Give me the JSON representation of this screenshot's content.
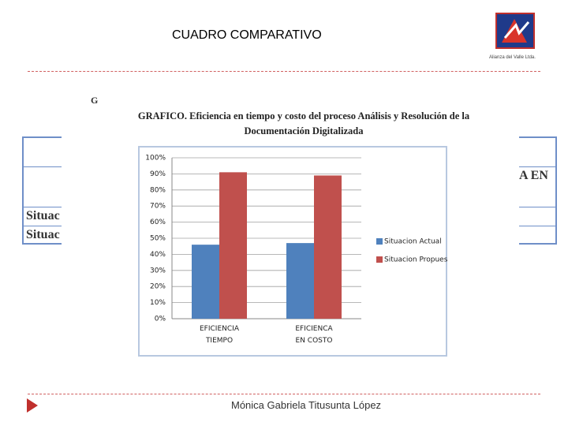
{
  "slide": {
    "heading": "CUADRO COMPARATIVO",
    "footer": "Mónica Gabriela Titusunta López",
    "logo_text": "Alianza del Valle Ltda.",
    "table_fragments": [
      "G",
      "A EN",
      "Situac",
      "Situac"
    ]
  },
  "chart_data": {
    "type": "bar",
    "title": "GRAFICO. Eficiencia en tiempo y costo del proceso Análisis y Resolución de la Documentación Digitalizada",
    "categories": [
      "EFICIENCIA TIEMPO",
      "EFICIENCA EN COSTO"
    ],
    "series": [
      {
        "name": "Situacion Actual",
        "color": "#4f81bd",
        "values": [
          46,
          47
        ]
      },
      {
        "name": "Situacion Propuesta",
        "color": "#c0504d",
        "values": [
          91,
          89
        ]
      }
    ],
    "ylim": [
      0,
      100
    ],
    "yticks": [
      {
        "value": 0,
        "label": "0%"
      },
      {
        "value": 10,
        "label": "10%"
      },
      {
        "value": 20,
        "label": "20%"
      },
      {
        "value": 30,
        "label": "30%"
      },
      {
        "value": 40,
        "label": "40%"
      },
      {
        "value": 50,
        "label": "50%"
      },
      {
        "value": 60,
        "label": "60%"
      },
      {
        "value": 70,
        "label": "70%"
      },
      {
        "value": 80,
        "label": "80%"
      },
      {
        "value": 90,
        "label": "90%"
      },
      {
        "value": 100,
        "label": "100%"
      }
    ],
    "grid": true,
    "legend": "right"
  }
}
